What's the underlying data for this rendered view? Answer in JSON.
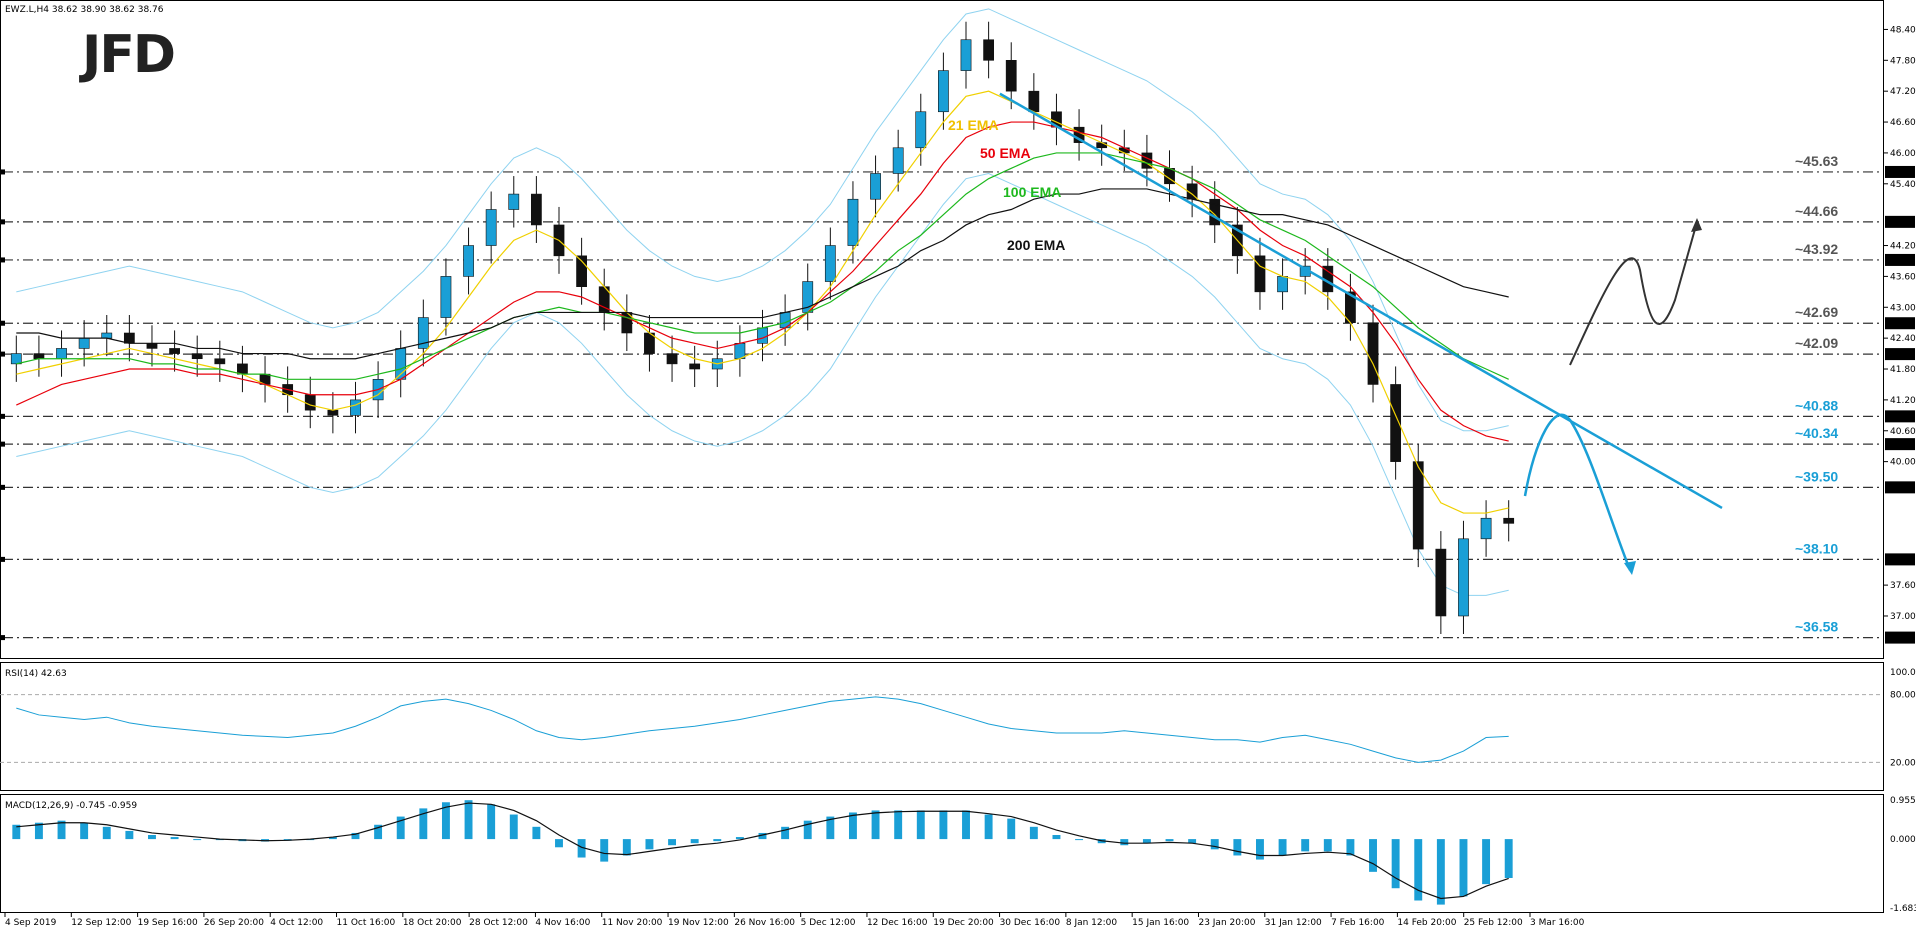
{
  "chart_data": {
    "type": "candlestick",
    "symbol_header": "EWZ.L,H4  38.62 38.90 38.62 38.76",
    "logo": "JFD",
    "price_axis": {
      "range": [
        36.3,
        48.7
      ],
      "ticks": [
        "48.40",
        "47.80",
        "47.20",
        "46.60",
        "46.00",
        "45.40",
        "44.20",
        "43.60",
        "43.00",
        "42.40",
        "41.80",
        "41.20",
        "40.60",
        "40.00",
        "37.60",
        "37.00"
      ]
    },
    "price_series": [
      {
        "name": "close",
        "values": [
          42.1,
          42.0,
          42.2,
          42.4,
          42.5,
          42.3,
          42.2,
          42.1,
          42.0,
          41.9,
          41.7,
          41.5,
          41.3,
          41.0,
          40.9,
          41.2,
          41.6,
          42.2,
          42.8,
          43.6,
          44.2,
          44.9,
          45.2,
          44.6,
          44.0,
          43.4,
          42.9,
          42.5,
          42.1,
          41.9,
          41.8,
          42.0,
          42.3,
          42.6,
          42.9,
          43.5,
          44.2,
          45.1,
          45.6,
          46.1,
          46.8,
          47.6,
          48.2,
          47.8,
          47.2,
          46.8,
          46.5,
          46.2,
          46.1,
          46.0,
          45.7,
          45.4,
          45.1,
          44.6,
          44.0,
          43.3,
          43.6,
          43.8,
          43.3,
          42.7,
          41.5,
          40.0,
          38.3,
          37.0,
          38.5,
          38.9,
          38.8
        ]
      },
      {
        "name": "21 EMA",
        "values": [
          41.7,
          41.8,
          41.9,
          42.0,
          42.1,
          42.2,
          42.1,
          42.0,
          41.9,
          41.8,
          41.7,
          41.5,
          41.3,
          41.1,
          41.0,
          41.1,
          41.3,
          41.7,
          42.1,
          42.6,
          43.2,
          43.8,
          44.3,
          44.5,
          44.3,
          43.9,
          43.4,
          42.9,
          42.5,
          42.2,
          42.0,
          41.9,
          42.0,
          42.2,
          42.5,
          42.9,
          43.4,
          44.1,
          44.8,
          45.4,
          46.0,
          46.6,
          47.1,
          47.2,
          47.0,
          46.8,
          46.6,
          46.4,
          46.2,
          46.0,
          45.8,
          45.5,
          45.2,
          44.8,
          44.3,
          43.8,
          43.6,
          43.5,
          43.2,
          42.7,
          41.9,
          40.9,
          39.9,
          39.2,
          39.0,
          39.0,
          39.1
        ]
      },
      {
        "name": "50 EMA",
        "values": [
          41.1,
          41.3,
          41.5,
          41.6,
          41.7,
          41.8,
          41.8,
          41.8,
          41.7,
          41.7,
          41.6,
          41.5,
          41.4,
          41.3,
          41.3,
          41.3,
          41.4,
          41.6,
          41.9,
          42.2,
          42.5,
          42.8,
          43.1,
          43.3,
          43.3,
          43.2,
          43.0,
          42.8,
          42.6,
          42.4,
          42.3,
          42.2,
          42.3,
          42.4,
          42.6,
          42.9,
          43.3,
          43.7,
          44.2,
          44.7,
          45.2,
          45.8,
          46.3,
          46.5,
          46.6,
          46.6,
          46.5,
          46.4,
          46.3,
          46.1,
          45.9,
          45.7,
          45.5,
          45.2,
          44.9,
          44.5,
          44.2,
          44.0,
          43.7,
          43.4,
          42.9,
          42.3,
          41.6,
          41.0,
          40.7,
          40.5,
          40.4
        ]
      },
      {
        "name": "100 EMA",
        "values": [
          41.9,
          42.0,
          42.0,
          42.0,
          42.0,
          42.0,
          41.9,
          41.9,
          41.8,
          41.8,
          41.7,
          41.7,
          41.6,
          41.6,
          41.6,
          41.6,
          41.7,
          41.8,
          42.0,
          42.2,
          42.4,
          42.6,
          42.8,
          42.9,
          43.0,
          42.9,
          42.9,
          42.8,
          42.7,
          42.6,
          42.5,
          42.5,
          42.5,
          42.6,
          42.7,
          42.9,
          43.1,
          43.4,
          43.7,
          44.1,
          44.4,
          44.8,
          45.2,
          45.5,
          45.7,
          45.9,
          46.0,
          46.0,
          46.0,
          45.9,
          45.8,
          45.7,
          45.5,
          45.3,
          45.0,
          44.7,
          44.5,
          44.3,
          44.0,
          43.7,
          43.4,
          43.0,
          42.6,
          42.3,
          42.0,
          41.8,
          41.6
        ]
      },
      {
        "name": "200 EMA",
        "values": [
          42.5,
          42.5,
          42.4,
          42.4,
          42.4,
          42.3,
          42.3,
          42.3,
          42.2,
          42.2,
          42.1,
          42.1,
          42.1,
          42.0,
          42.0,
          42.0,
          42.1,
          42.2,
          42.3,
          42.4,
          42.5,
          42.6,
          42.8,
          42.9,
          42.9,
          42.9,
          42.9,
          42.9,
          42.8,
          42.8,
          42.8,
          42.8,
          42.8,
          42.8,
          42.9,
          43.0,
          43.2,
          43.4,
          43.6,
          43.8,
          44.1,
          44.3,
          44.6,
          44.8,
          44.9,
          45.1,
          45.2,
          45.2,
          45.3,
          45.3,
          45.3,
          45.2,
          45.1,
          45.0,
          44.9,
          44.8,
          44.8,
          44.7,
          44.6,
          44.4,
          44.2,
          44.0,
          43.8,
          43.6,
          43.4,
          43.3,
          43.2
        ]
      }
    ],
    "annotations": {
      "ema_labels": [
        {
          "text": "21 EMA",
          "color": "#f0c000"
        },
        {
          "text": "50 EMA",
          "color": "#e8000b"
        },
        {
          "text": "100 EMA",
          "color": "#1db81d"
        },
        {
          "text": "200 EMA",
          "color": "#111111"
        }
      ],
      "levels": [
        {
          "value": 45.63,
          "label": "~45.63",
          "box": "45.63",
          "color": "#555555"
        },
        {
          "value": 44.66,
          "label": "~44.66",
          "box": "44.66",
          "color": "#555555"
        },
        {
          "value": 43.92,
          "label": "~43.92",
          "box": "43.92",
          "color": "#555555"
        },
        {
          "value": 42.69,
          "label": "~42.69",
          "box": "42.69",
          "color": "#555555"
        },
        {
          "value": 42.09,
          "label": "~42.09",
          "box": "42.09",
          "color": "#555555"
        },
        {
          "value": 40.88,
          "label": "~40.88",
          "box": "40.88",
          "color": "#1a9fd6"
        },
        {
          "value": 40.34,
          "label": "~40.34",
          "box": "40.34",
          "color": "#1a9fd6"
        },
        {
          "value": 39.5,
          "label": "~39.50",
          "box": "39.50",
          "color": "#1a9fd6"
        },
        {
          "value": 38.1,
          "label": "~38.10",
          "box": "38.10",
          "color": "#1a9fd6"
        },
        {
          "value": 36.58,
          "label": "~36.58",
          "box": "36.58",
          "color": "#1a9fd6"
        }
      ],
      "trendline": {
        "from": [
          43.5,
          47.15
        ],
        "to": [
          65.5,
          39.1
        ],
        "color": "#1a9fd6"
      }
    },
    "x_axis_labels": [
      "4 Sep 2019",
      "12 Sep 12:00",
      "19 Sep 16:00",
      "26 Sep 20:00",
      "4 Oct 12:00",
      "11 Oct 16:00",
      "18 Oct 20:00",
      "28 Oct 12:00",
      "4 Nov 16:00",
      "11 Nov 20:00",
      "19 Nov 12:00",
      "26 Nov 16:00",
      "5 Dec 12:00",
      "12 Dec 16:00",
      "19 Dec 20:00",
      "30 Dec 16:00",
      "8 Jan 12:00",
      "15 Jan 16:00",
      "23 Jan 20:00",
      "31 Jan 12:00",
      "7 Feb 16:00",
      "14 Feb 20:00",
      "25 Feb 12:00",
      "3 Mar 16:00"
    ],
    "rsi": {
      "header": "RSI(14) 42.63",
      "range": [
        0,
        100
      ],
      "ticks": [
        "100.00",
        "80.00",
        "20.00"
      ],
      "levels": [
        80,
        20
      ],
      "values": [
        68,
        62,
        60,
        58,
        60,
        55,
        52,
        50,
        48,
        46,
        44,
        43,
        42,
        44,
        46,
        52,
        60,
        70,
        74,
        76,
        72,
        66,
        58,
        48,
        42,
        40,
        42,
        45,
        48,
        50,
        52,
        55,
        58,
        62,
        66,
        70,
        74,
        76,
        78,
        76,
        72,
        66,
        60,
        54,
        50,
        48,
        46,
        46,
        46,
        48,
        46,
        44,
        42,
        40,
        40,
        38,
        42,
        44,
        40,
        36,
        30,
        24,
        20,
        22,
        30,
        42,
        43
      ]
    },
    "macd": {
      "header": "MACD(12,26,9) -0.745 -0.959",
      "range": [
        -1.683,
        0.955
      ],
      "ticks": [
        "0.955",
        "0.000",
        "-1.683"
      ],
      "histogram": [
        0.35,
        0.4,
        0.45,
        0.4,
        0.3,
        0.2,
        0.1,
        0.05,
        0.0,
        -0.02,
        -0.05,
        -0.06,
        -0.04,
        0.0,
        0.05,
        0.15,
        0.35,
        0.55,
        0.75,
        0.9,
        0.95,
        0.85,
        0.6,
        0.3,
        -0.2,
        -0.45,
        -0.55,
        -0.4,
        -0.25,
        -0.15,
        -0.1,
        -0.05,
        0.05,
        0.15,
        0.3,
        0.45,
        0.55,
        0.65,
        0.7,
        0.7,
        0.7,
        0.7,
        0.7,
        0.6,
        0.5,
        0.3,
        0.1,
        0.0,
        -0.1,
        -0.15,
        -0.1,
        -0.05,
        -0.1,
        -0.25,
        -0.4,
        -0.5,
        -0.4,
        -0.3,
        -0.3,
        -0.4,
        -0.8,
        -1.2,
        -1.5,
        -1.6,
        -1.4,
        -1.1,
        -0.95
      ],
      "signal": [
        0.3,
        0.35,
        0.4,
        0.4,
        0.35,
        0.25,
        0.15,
        0.1,
        0.05,
        0.0,
        -0.02,
        -0.04,
        -0.03,
        0.0,
        0.05,
        0.12,
        0.28,
        0.45,
        0.62,
        0.78,
        0.88,
        0.85,
        0.7,
        0.45,
        0.1,
        -0.2,
        -0.35,
        -0.38,
        -0.3,
        -0.22,
        -0.15,
        -0.1,
        -0.02,
        0.1,
        0.22,
        0.36,
        0.48,
        0.58,
        0.64,
        0.67,
        0.68,
        0.68,
        0.68,
        0.62,
        0.55,
        0.4,
        0.22,
        0.08,
        -0.04,
        -0.1,
        -0.1,
        -0.08,
        -0.1,
        -0.18,
        -0.3,
        -0.4,
        -0.4,
        -0.35,
        -0.32,
        -0.36,
        -0.6,
        -0.95,
        -1.25,
        -1.45,
        -1.4,
        -1.15,
        -0.96
      ]
    }
  }
}
